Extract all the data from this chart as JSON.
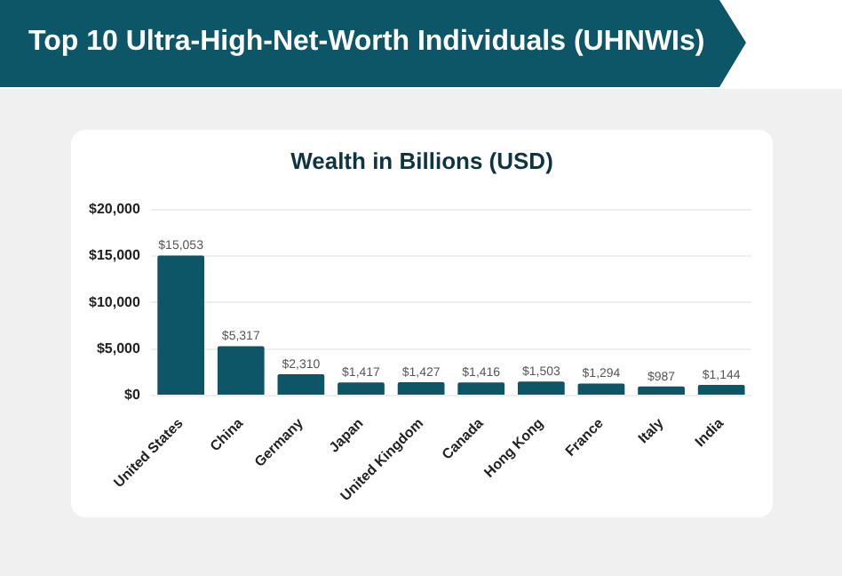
{
  "chart_data": {
    "type": "bar",
    "title": "Top 10 Ultra-High-Net-Worth Individuals (UHNWIs)",
    "subtitle": "Wealth in Billions (USD)",
    "categories": [
      "United States",
      "China",
      "Germany",
      "Japan",
      "United Kingdom",
      "Canada",
      "Hong Kong",
      "France",
      "Italy",
      "India"
    ],
    "values": [
      15053,
      5317,
      2310,
      1417,
      1427,
      1416,
      1503,
      1294,
      987,
      1144
    ],
    "value_labels": [
      "$15,053",
      "$5,317",
      "$2,310",
      "$1,417",
      "$1,427",
      "$1,416",
      "$1,503",
      "$1,294",
      "$987",
      "$1,144"
    ],
    "color": "#0d5668",
    "ylim": [
      0,
      20000
    ],
    "yticks": [
      {
        "value": 0,
        "label": "$0"
      },
      {
        "value": 5000,
        "label": "$5,000"
      },
      {
        "value": 10000,
        "label": "$10,000"
      },
      {
        "value": 15000,
        "label": "$15,000"
      },
      {
        "value": 20000,
        "label": "$20,000"
      }
    ],
    "grid": "y"
  }
}
